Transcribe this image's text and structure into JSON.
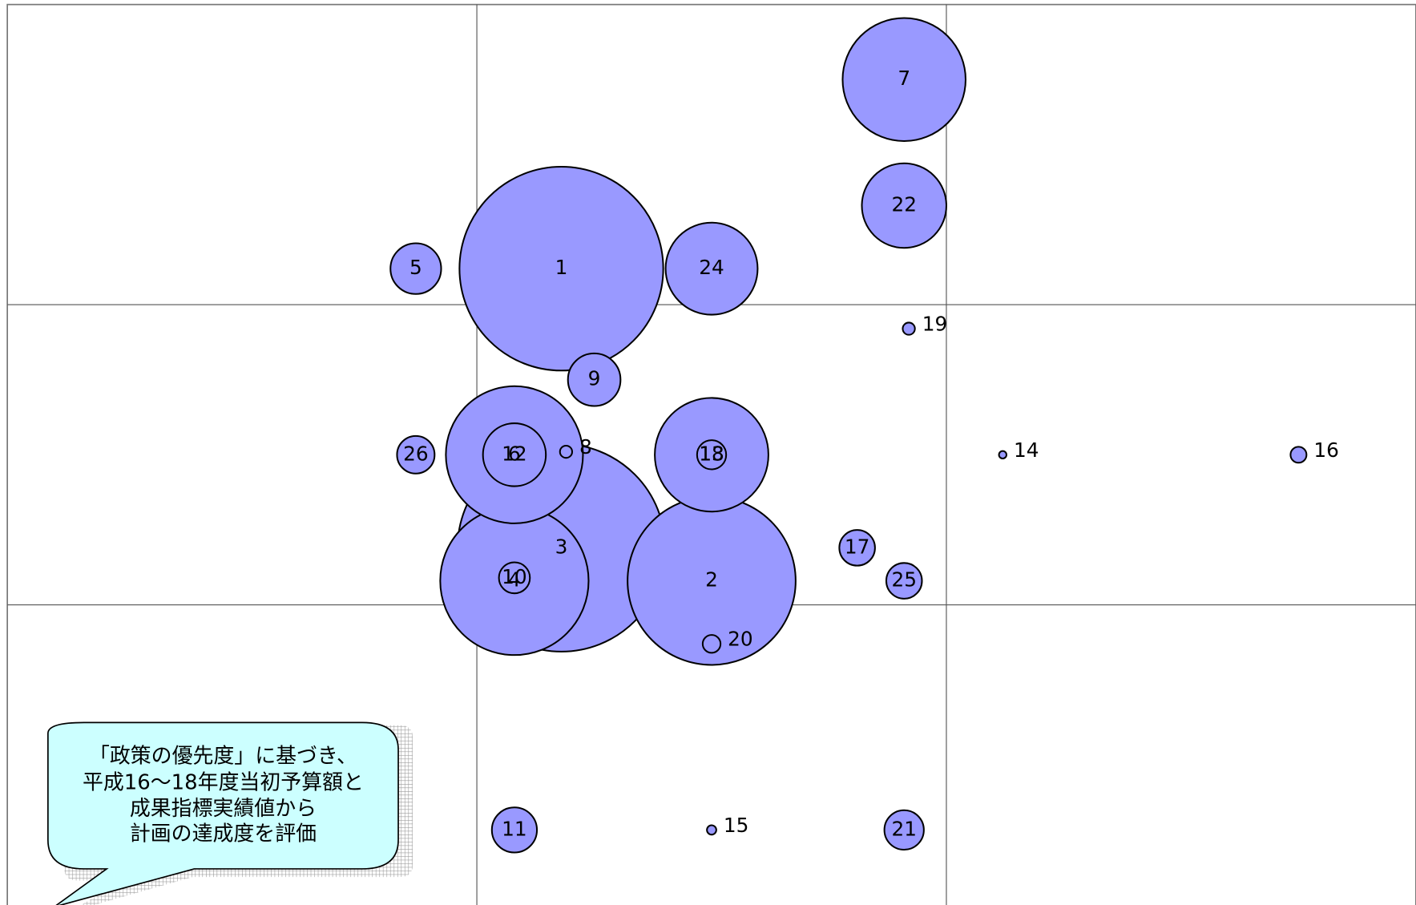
{
  "chart_data": {
    "type": "bubble",
    "labels": [
      "1",
      "2",
      "3",
      "4",
      "5",
      "6",
      "7",
      "8",
      "9",
      "10",
      "11",
      "12",
      "13",
      "14",
      "15",
      "16",
      "17",
      "18",
      "19",
      "20",
      "21",
      "22",
      "24",
      "25",
      "26"
    ],
    "x": [
      1.18,
      1.5,
      1.18,
      1.08,
      0.87,
      1.08,
      1.91,
      1.19,
      1.25,
      1.08,
      1.08,
      1.08,
      1.5,
      2.12,
      1.5,
      2.75,
      1.81,
      1.5,
      1.92,
      1.5,
      1.91,
      1.91,
      1.5,
      1.91,
      0.87
    ],
    "y": [
      2.12,
      1.08,
      1.19,
      1.08,
      2.12,
      1.5,
      2.75,
      1.51,
      1.75,
      1.09,
      0.25,
      1.5,
      1.5,
      1.5,
      0.25,
      1.5,
      1.19,
      1.5,
      1.92,
      0.87,
      0.25,
      2.33,
      2.12,
      1.08,
      1.5
    ],
    "sizes": [
      0.217,
      0.179,
      0.221,
      0.158,
      0.054,
      0.067,
      0.131,
      0.013,
      0.056,
      0.033,
      0.048,
      0.146,
      0.121,
      0.008,
      0.01,
      0.017,
      0.038,
      0.031,
      0.013,
      0.019,
      0.042,
      0.09,
      0.098,
      0.038,
      0.04
    ],
    "color": "#9999ff",
    "xlim": [
      0,
      3
    ],
    "ylim": [
      0,
      3
    ],
    "xgrid": [
      1,
      2
    ],
    "ygrid": [
      1,
      2
    ]
  },
  "callout": {
    "lines": [
      "「政策の優先度」に基づき、",
      "平成16～18年度当初予算額と",
      "成果指標実績値から",
      "計画の達成度を評価"
    ]
  }
}
